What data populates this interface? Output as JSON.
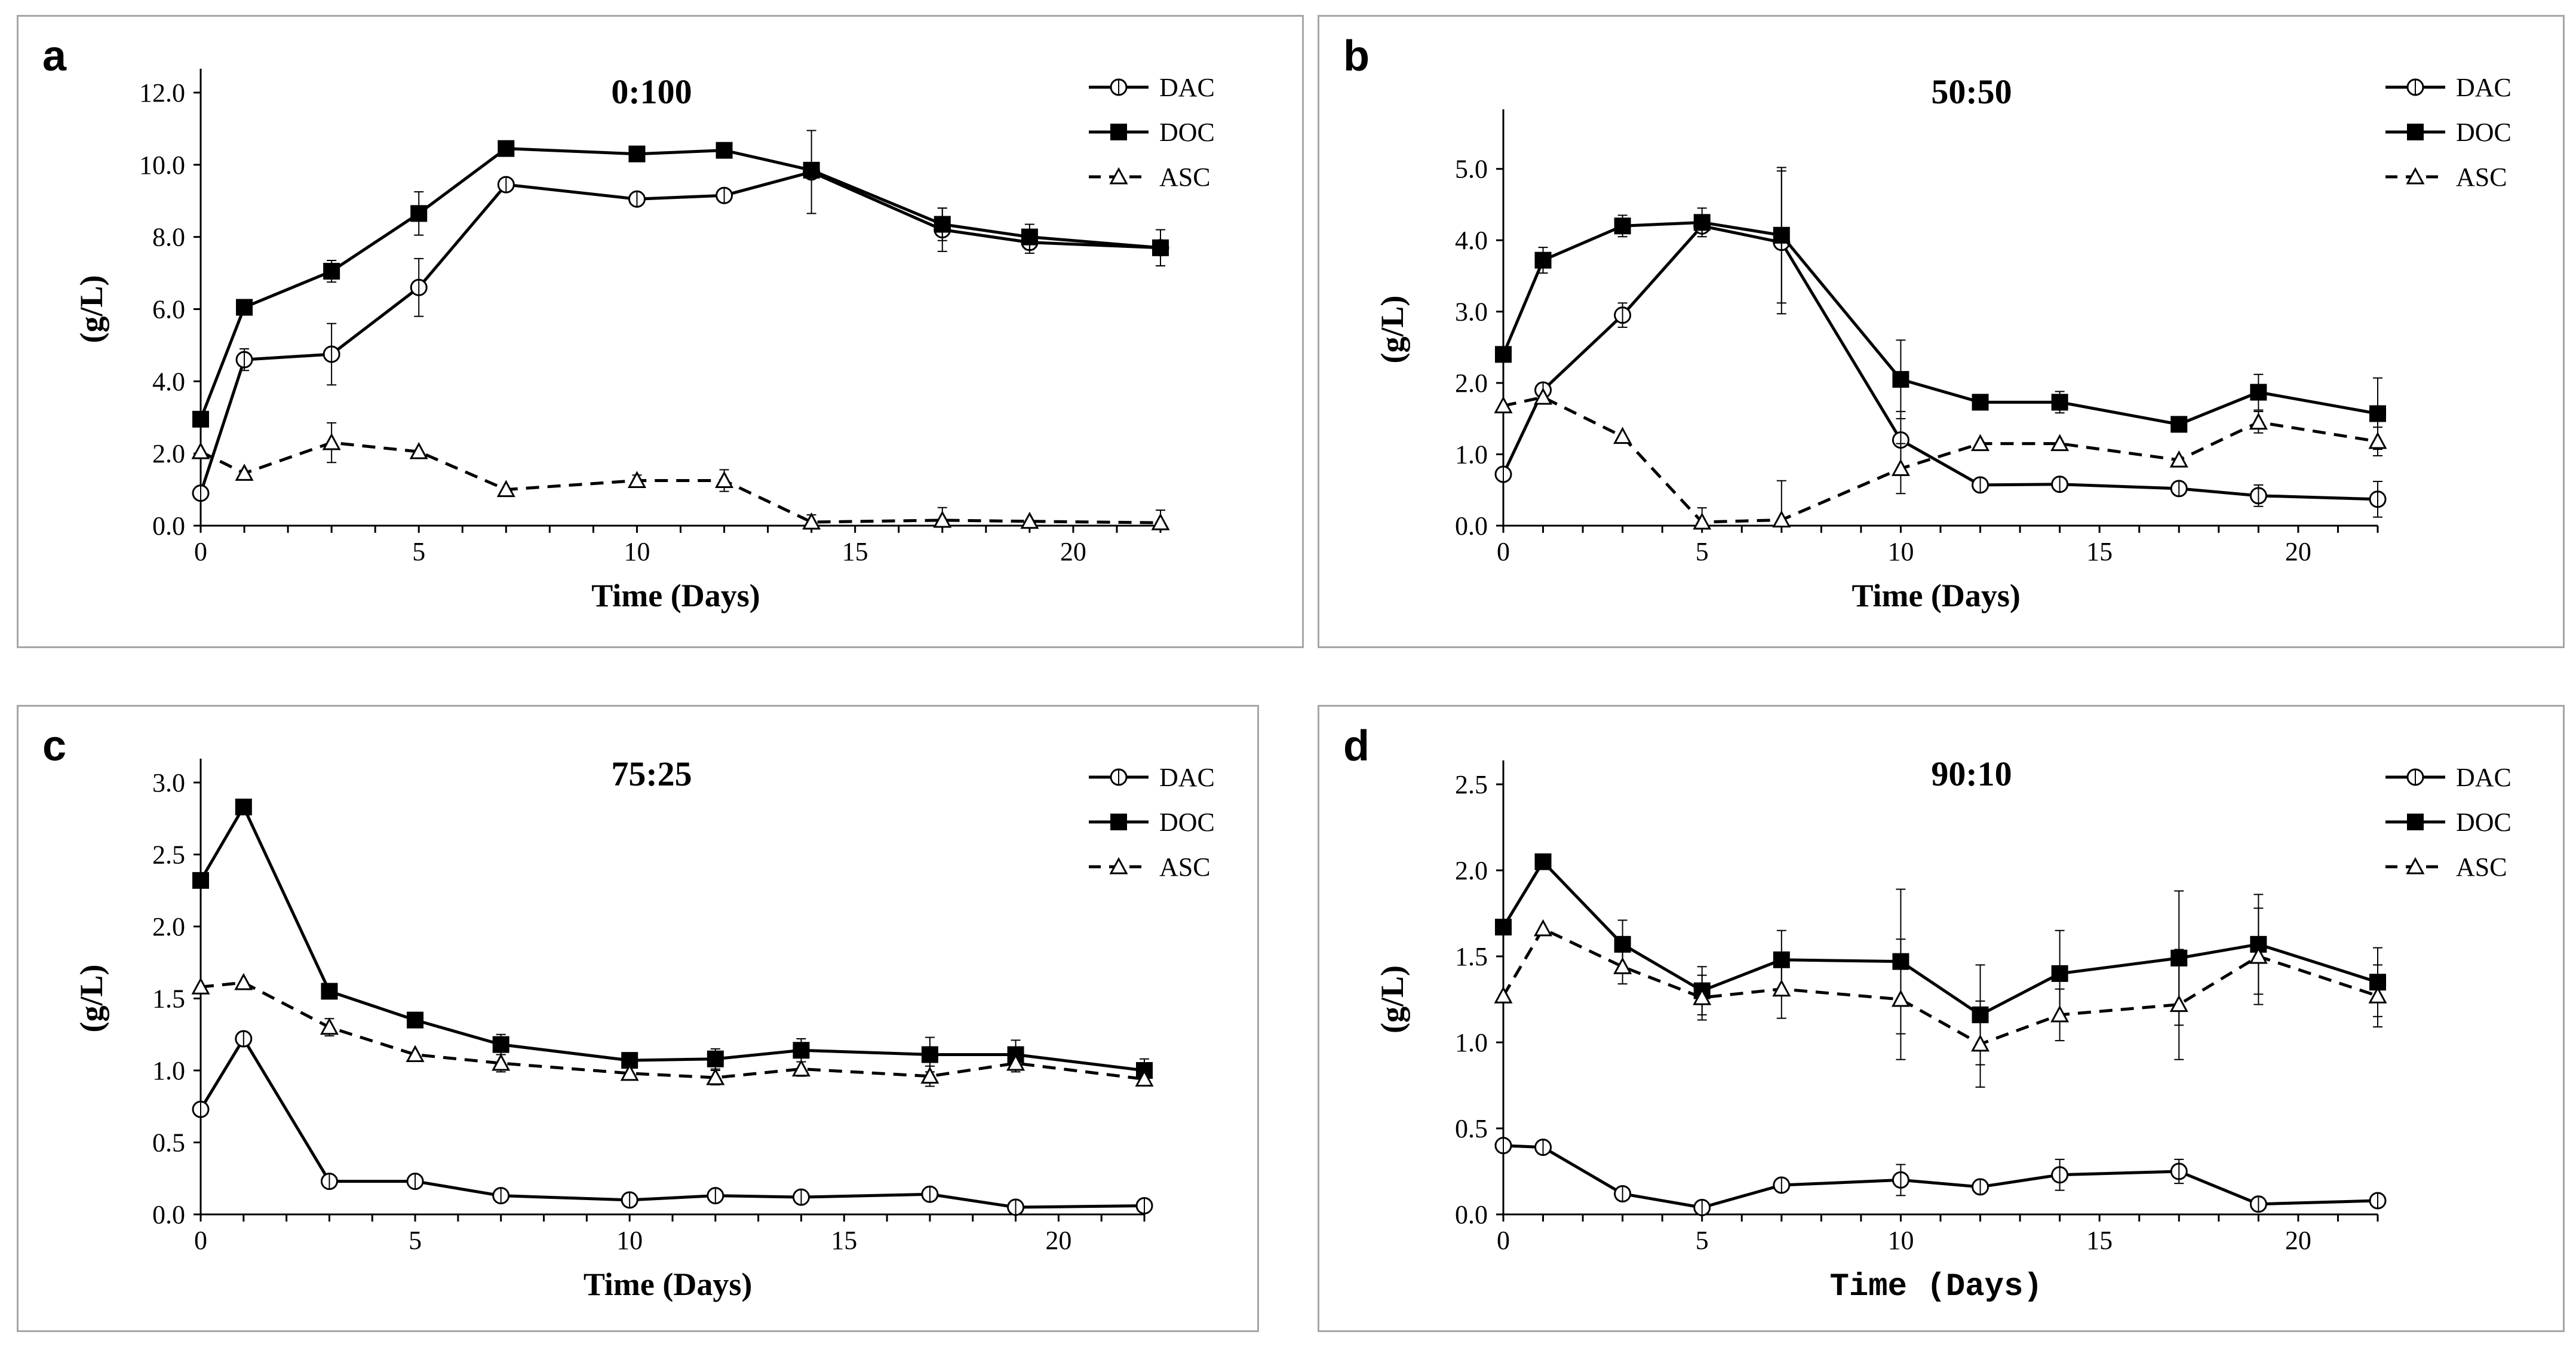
{
  "figure": {
    "panels": [
      {
        "letter": "a"
      },
      {
        "letter": "b"
      },
      {
        "letter": "c"
      },
      {
        "letter": "d"
      }
    ]
  },
  "chart_data": [
    {
      "panel": "a",
      "type": "line",
      "title": "0:100",
      "xlabel": "Time (Days)",
      "ylabel": "(g/L)",
      "xlim": [
        0,
        22
      ],
      "ylim": [
        0,
        12
      ],
      "xticks": [
        0,
        5,
        10,
        15,
        20
      ],
      "xtick_labels": [
        "0",
        "5",
        "10",
        "15",
        "20"
      ],
      "yticks": [
        0,
        2,
        4,
        6,
        8,
        10,
        12
      ],
      "ytick_labels": [
        "0.0",
        "2.0",
        "4.0",
        "6.0",
        "8.0",
        "10.0",
        "12.0"
      ],
      "x": [
        0,
        1,
        3,
        5,
        7,
        10,
        12,
        14,
        17,
        19,
        22
      ],
      "series": [
        {
          "name": "DAC",
          "marker": "circle-open",
          "line": "solid",
          "values": [
            0.9,
            4.6,
            4.75,
            6.6,
            9.45,
            9.05,
            9.15,
            9.8,
            8.2,
            7.85,
            7.7
          ],
          "errors": [
            0,
            0.3,
            0.85,
            0.8,
            0,
            0,
            0,
            1.15,
            0.6,
            0.3,
            0
          ]
        },
        {
          "name": "DOC",
          "marker": "square-filled",
          "line": "solid",
          "values": [
            2.95,
            6.05,
            7.05,
            8.65,
            10.45,
            10.3,
            10.4,
            9.85,
            8.35,
            8.0,
            7.7
          ],
          "errors": [
            0,
            0,
            0.3,
            0.6,
            0,
            0,
            0,
            0,
            0.45,
            0.35,
            0.5
          ]
        },
        {
          "name": "ASC",
          "marker": "triangle-open",
          "line": "dashed",
          "values": [
            2.05,
            1.45,
            2.3,
            2.05,
            1.0,
            1.25,
            1.25,
            0.1,
            0.15,
            0.12,
            0.08
          ],
          "errors": [
            0,
            0,
            0.55,
            0,
            0,
            0.15,
            0.3,
            0.2,
            0.35,
            0,
            0.35
          ]
        }
      ]
    },
    {
      "panel": "b",
      "type": "line",
      "title": "50:50",
      "xlabel": "Time (Days)",
      "ylabel": "(g/L)",
      "xlim": [
        0,
        22
      ],
      "ylim": [
        0,
        5.5
      ],
      "xticks": [
        0,
        5,
        10,
        15,
        20
      ],
      "xtick_labels": [
        "0",
        "5",
        "10",
        "15",
        "20"
      ],
      "yticks": [
        0,
        1,
        2,
        3,
        4,
        5
      ],
      "ytick_labels": [
        "0.0",
        "1.0",
        "2.0",
        "3.0",
        "4.0",
        "5.0"
      ],
      "x": [
        0,
        1,
        3,
        5,
        7,
        10,
        12,
        14,
        17,
        19,
        22
      ],
      "series": [
        {
          "name": "DAC",
          "marker": "circle-open",
          "line": "solid",
          "values": [
            0.72,
            1.9,
            2.95,
            4.2,
            3.97,
            1.2,
            0.57,
            0.58,
            0.52,
            0.42,
            0.37
          ],
          "errors": [
            0,
            0,
            0.17,
            0,
            1.0,
            0.4,
            0,
            0,
            0,
            0.15,
            0.25
          ]
        },
        {
          "name": "DOC",
          "marker": "square-filled",
          "line": "solid",
          "values": [
            2.4,
            3.72,
            4.2,
            4.25,
            4.07,
            2.05,
            1.73,
            1.73,
            1.42,
            1.87,
            1.57
          ],
          "errors": [
            0,
            0.18,
            0.15,
            0.2,
            0.95,
            0.55,
            0,
            0.15,
            0,
            0.25,
            0.5
          ]
        },
        {
          "name": "ASC",
          "marker": "triangle-open",
          "line": "dashed",
          "values": [
            1.68,
            1.8,
            1.25,
            0.05,
            0.08,
            0.8,
            1.15,
            1.15,
            0.92,
            1.45,
            1.18
          ],
          "errors": [
            0,
            0,
            0,
            0.2,
            0.55,
            0.35,
            0,
            0,
            0,
            0.15,
            0.2
          ]
        }
      ]
    },
    {
      "panel": "c",
      "type": "line",
      "title": "75:25",
      "xlabel": "Time (Days)",
      "ylabel": "(g/L)",
      "xlim": [
        0,
        22
      ],
      "ylim": [
        0,
        3
      ],
      "xticks": [
        0,
        5,
        10,
        15,
        20
      ],
      "xtick_labels": [
        "0",
        "5",
        "10",
        "15",
        "20"
      ],
      "yticks": [
        0,
        0.5,
        1,
        1.5,
        2,
        2.5,
        3
      ],
      "ytick_labels": [
        "0.0",
        "0.5",
        "1.0",
        "1.5",
        "2.0",
        "2.5",
        "3.0"
      ],
      "x": [
        0,
        1,
        3,
        5,
        7,
        10,
        12,
        14,
        17,
        19,
        22
      ],
      "series": [
        {
          "name": "DAC",
          "marker": "circle-open",
          "line": "solid",
          "values": [
            0.73,
            1.22,
            0.23,
            0.23,
            0.13,
            0.1,
            0.13,
            0.12,
            0.14,
            0.05,
            0.06
          ],
          "errors": [
            0,
            0,
            0,
            0.03,
            0,
            0,
            0,
            0,
            0,
            0,
            0
          ]
        },
        {
          "name": "DOC",
          "marker": "square-filled",
          "line": "solid",
          "values": [
            2.32,
            2.83,
            1.55,
            1.35,
            1.18,
            1.07,
            1.08,
            1.14,
            1.11,
            1.11,
            1.0
          ],
          "errors": [
            0,
            0,
            0,
            0,
            0.07,
            0,
            0.07,
            0.08,
            0.12,
            0.1,
            0.08
          ]
        },
        {
          "name": "ASC",
          "marker": "triangle-open",
          "line": "dashed",
          "values": [
            1.58,
            1.61,
            1.3,
            1.11,
            1.05,
            0.98,
            0.95,
            1.01,
            0.96,
            1.05,
            0.94
          ],
          "errors": [
            0,
            0,
            0.06,
            0,
            0.06,
            0,
            0.05,
            0.05,
            0.07,
            0.06,
            0
          ]
        }
      ]
    },
    {
      "panel": "d",
      "type": "line",
      "title": "90:10",
      "xlabel": "Time (Days)",
      "ylabel": "(g/L)",
      "xlim": [
        0,
        22
      ],
      "ylim": [
        0,
        2.5
      ],
      "xticks": [
        0,
        5,
        10,
        15,
        20
      ],
      "xtick_labels": [
        "0",
        "5",
        "10",
        "15",
        "20"
      ],
      "yticks": [
        0,
        0.5,
        1,
        1.5,
        2,
        2.5
      ],
      "ytick_labels": [
        "0.0",
        "0.5",
        "1.0",
        "1.5",
        "2.0",
        "2.5"
      ],
      "x": [
        0,
        1,
        3,
        5,
        7,
        10,
        12,
        14,
        17,
        19,
        22
      ],
      "series": [
        {
          "name": "DAC",
          "marker": "circle-open",
          "line": "solid",
          "values": [
            0.4,
            0.39,
            0.12,
            0.04,
            0.17,
            0.2,
            0.16,
            0.23,
            0.25,
            0.06,
            0.08
          ],
          "errors": [
            0,
            0,
            0.03,
            0,
            0,
            0.09,
            0.04,
            0.09,
            0.07,
            0,
            0
          ]
        },
        {
          "name": "DOC",
          "marker": "square-filled",
          "line": "solid",
          "values": [
            1.67,
            2.05,
            1.57,
            1.3,
            1.48,
            1.47,
            1.16,
            1.4,
            1.49,
            1.57,
            1.35
          ],
          "errors": [
            0,
            0,
            0.14,
            0.14,
            0.17,
            0.42,
            0.29,
            0.25,
            0.39,
            0.29,
            0.2
          ]
        },
        {
          "name": "ASC",
          "marker": "triangle-open",
          "line": "dashed",
          "values": [
            1.27,
            1.66,
            1.44,
            1.26,
            1.31,
            1.25,
            0.99,
            1.16,
            1.22,
            1.5,
            1.27
          ],
          "errors": [
            0,
            0,
            0.1,
            0.13,
            0.17,
            0.35,
            0.25,
            0.15,
            0.32,
            0.28,
            0.18
          ]
        }
      ]
    }
  ]
}
